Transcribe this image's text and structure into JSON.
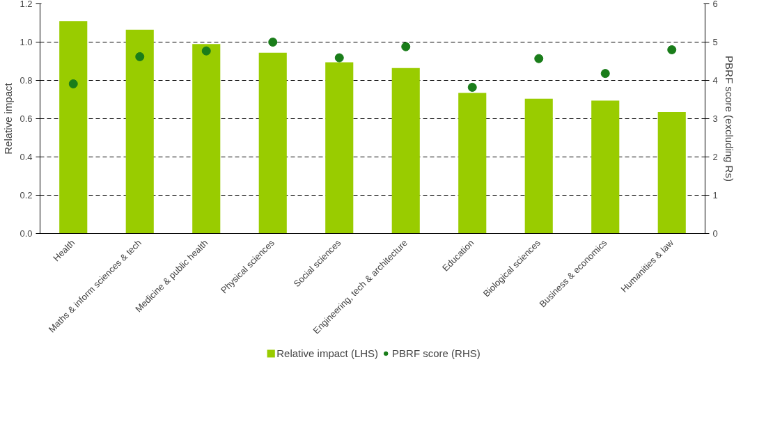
{
  "chart_data": {
    "type": "bar",
    "ylabel": "Relative impact",
    "y2label": "PBRF score (excluding Rs)",
    "categories": [
      "Health",
      "Maths & inform sciences & tech",
      "Medicine & public health",
      "Physical sciences",
      "Social sciences",
      "Engineering, tech & architecture",
      "Education",
      "Biological sciences",
      "Business & economics",
      "Humanities & law"
    ],
    "series": [
      {
        "name": "Relative impact (LHS)",
        "color": "#99cc00",
        "values": [
          1.11,
          1.065,
          0.99,
          0.945,
          0.895,
          0.865,
          0.735,
          0.705,
          0.695,
          0.635
        ]
      },
      {
        "name": "PBRF score (RHS)",
        "type": "scatter",
        "axis": "y2",
        "marker": "circle",
        "color": "#1a7d1a",
        "values": [
          3.91,
          4.62,
          4.77,
          5.0,
          4.59,
          4.88,
          3.82,
          4.57,
          4.18,
          4.8
        ]
      }
    ],
    "ylim": [
      0,
      1.2
    ],
    "yticks": [
      {
        "value": 0,
        "label": "0.0"
      },
      {
        "value": 0.2,
        "label": "0.2"
      },
      {
        "value": 0.4,
        "label": "0.4"
      },
      {
        "value": 0.6,
        "label": "0.6"
      },
      {
        "value": 0.8,
        "label": "0.8"
      },
      {
        "value": 1.0,
        "label": "1.0"
      },
      {
        "value": 1.2,
        "label": "1.2"
      }
    ],
    "y2lim": [
      0,
      6
    ],
    "y2ticks": [
      0,
      1,
      2,
      3,
      4,
      5,
      6
    ],
    "grid": "y",
    "legend": "bottom"
  }
}
